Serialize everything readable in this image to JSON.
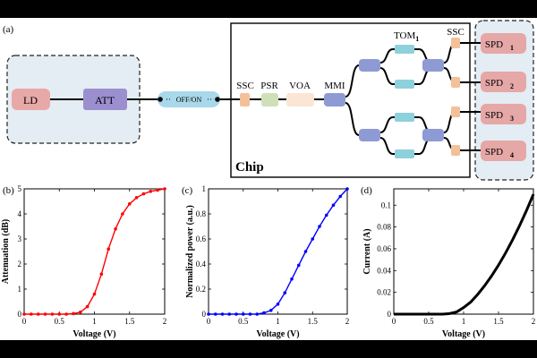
{
  "diagram": {
    "panel_a_label": "(a)",
    "laser": "LD",
    "attenuator": "ATT",
    "switch": "OFF/ON",
    "ssc_in": "SSC",
    "psr": "PSR",
    "voa": "VOA",
    "mmi": "MMI",
    "tom_main": "TOM",
    "tom_sub": "1",
    "ssc_out": "SSC",
    "chip": "Chip",
    "detectors": [
      {
        "main": "SPD",
        "sub": "1"
      },
      {
        "main": "SPD",
        "sub": "2"
      },
      {
        "main": "SPD",
        "sub": "3"
      },
      {
        "main": "SPD",
        "sub": "4"
      }
    ],
    "colors": {
      "panel_bg": "#e4edf3",
      "ld": "#e9a8a8",
      "att": "#9b8fd0",
      "switch": "#a8d8ea",
      "ssc": "#f3c09a",
      "psr": "#cfe0b8",
      "voa": "#fbe6d6",
      "mmi": "#8e9ad4",
      "tom": "#8ed0dc",
      "spd": "#e6a7a7"
    }
  },
  "chart_data": [
    {
      "panel_label": "(b)",
      "type": "line",
      "xlabel": "Voltage (V)",
      "ylabel": "Attenuation (dB)",
      "xlim": [
        0,
        2
      ],
      "ylim": [
        0,
        5
      ],
      "xticks": [
        "0",
        "0.5",
        "1",
        "1.5",
        "2"
      ],
      "yticks": [
        "0",
        "1",
        "2",
        "3",
        "4",
        "5"
      ],
      "color": "#ff0000",
      "markers": true,
      "x": [
        0,
        0.1,
        0.2,
        0.3,
        0.4,
        0.5,
        0.6,
        0.7,
        0.8,
        0.9,
        1.0,
        1.1,
        1.2,
        1.3,
        1.4,
        1.5,
        1.6,
        1.7,
        1.8,
        1.9,
        2.0
      ],
      "y": [
        0,
        0,
        0,
        0,
        0,
        0,
        0,
        0.02,
        0.08,
        0.3,
        0.8,
        1.6,
        2.6,
        3.4,
        4.0,
        4.4,
        4.65,
        4.8,
        4.9,
        4.95,
        5.0
      ]
    },
    {
      "panel_label": "(c)",
      "type": "line",
      "xlabel": "Voltage (V)",
      "ylabel": "Normalized power (a.u.)",
      "xlim": [
        0,
        2
      ],
      "ylim": [
        0,
        1
      ],
      "xticks": [
        "0",
        "0.5",
        "1",
        "1.5",
        "2"
      ],
      "yticks": [
        "0",
        "0.2",
        "0.4",
        "0.6",
        "0.8",
        "1"
      ],
      "color": "#0000ff",
      "markers": true,
      "x": [
        0,
        0.1,
        0.2,
        0.3,
        0.4,
        0.5,
        0.6,
        0.7,
        0.8,
        0.9,
        1.0,
        1.1,
        1.2,
        1.3,
        1.4,
        1.5,
        1.6,
        1.7,
        1.8,
        1.9,
        2.0
      ],
      "y": [
        0,
        0,
        0,
        0,
        0,
        0,
        0,
        0,
        0.01,
        0.03,
        0.08,
        0.17,
        0.28,
        0.39,
        0.5,
        0.6,
        0.7,
        0.79,
        0.87,
        0.94,
        1.0
      ]
    },
    {
      "panel_label": "(d)",
      "type": "line",
      "xlabel": "Voltage (V)",
      "ylabel": "Current (A)",
      "xlim": [
        0,
        2
      ],
      "ylim": [
        0,
        0.115
      ],
      "xticks": [
        "0",
        "0.5",
        "1",
        "1.5",
        "2"
      ],
      "yticks": [
        "0",
        "0.02",
        "0.04",
        "0.06",
        "0.08",
        "0.1"
      ],
      "color": "#000000",
      "markers": false,
      "x": [
        0,
        0.1,
        0.2,
        0.3,
        0.4,
        0.5,
        0.6,
        0.7,
        0.8,
        0.9,
        1.0,
        1.1,
        1.2,
        1.3,
        1.4,
        1.5,
        1.6,
        1.7,
        1.8,
        1.9,
        2.0
      ],
      "y": [
        0,
        0,
        0,
        0,
        0,
        0,
        0,
        0,
        0.0005,
        0.002,
        0.006,
        0.011,
        0.018,
        0.026,
        0.035,
        0.045,
        0.056,
        0.068,
        0.081,
        0.095,
        0.11
      ]
    }
  ]
}
